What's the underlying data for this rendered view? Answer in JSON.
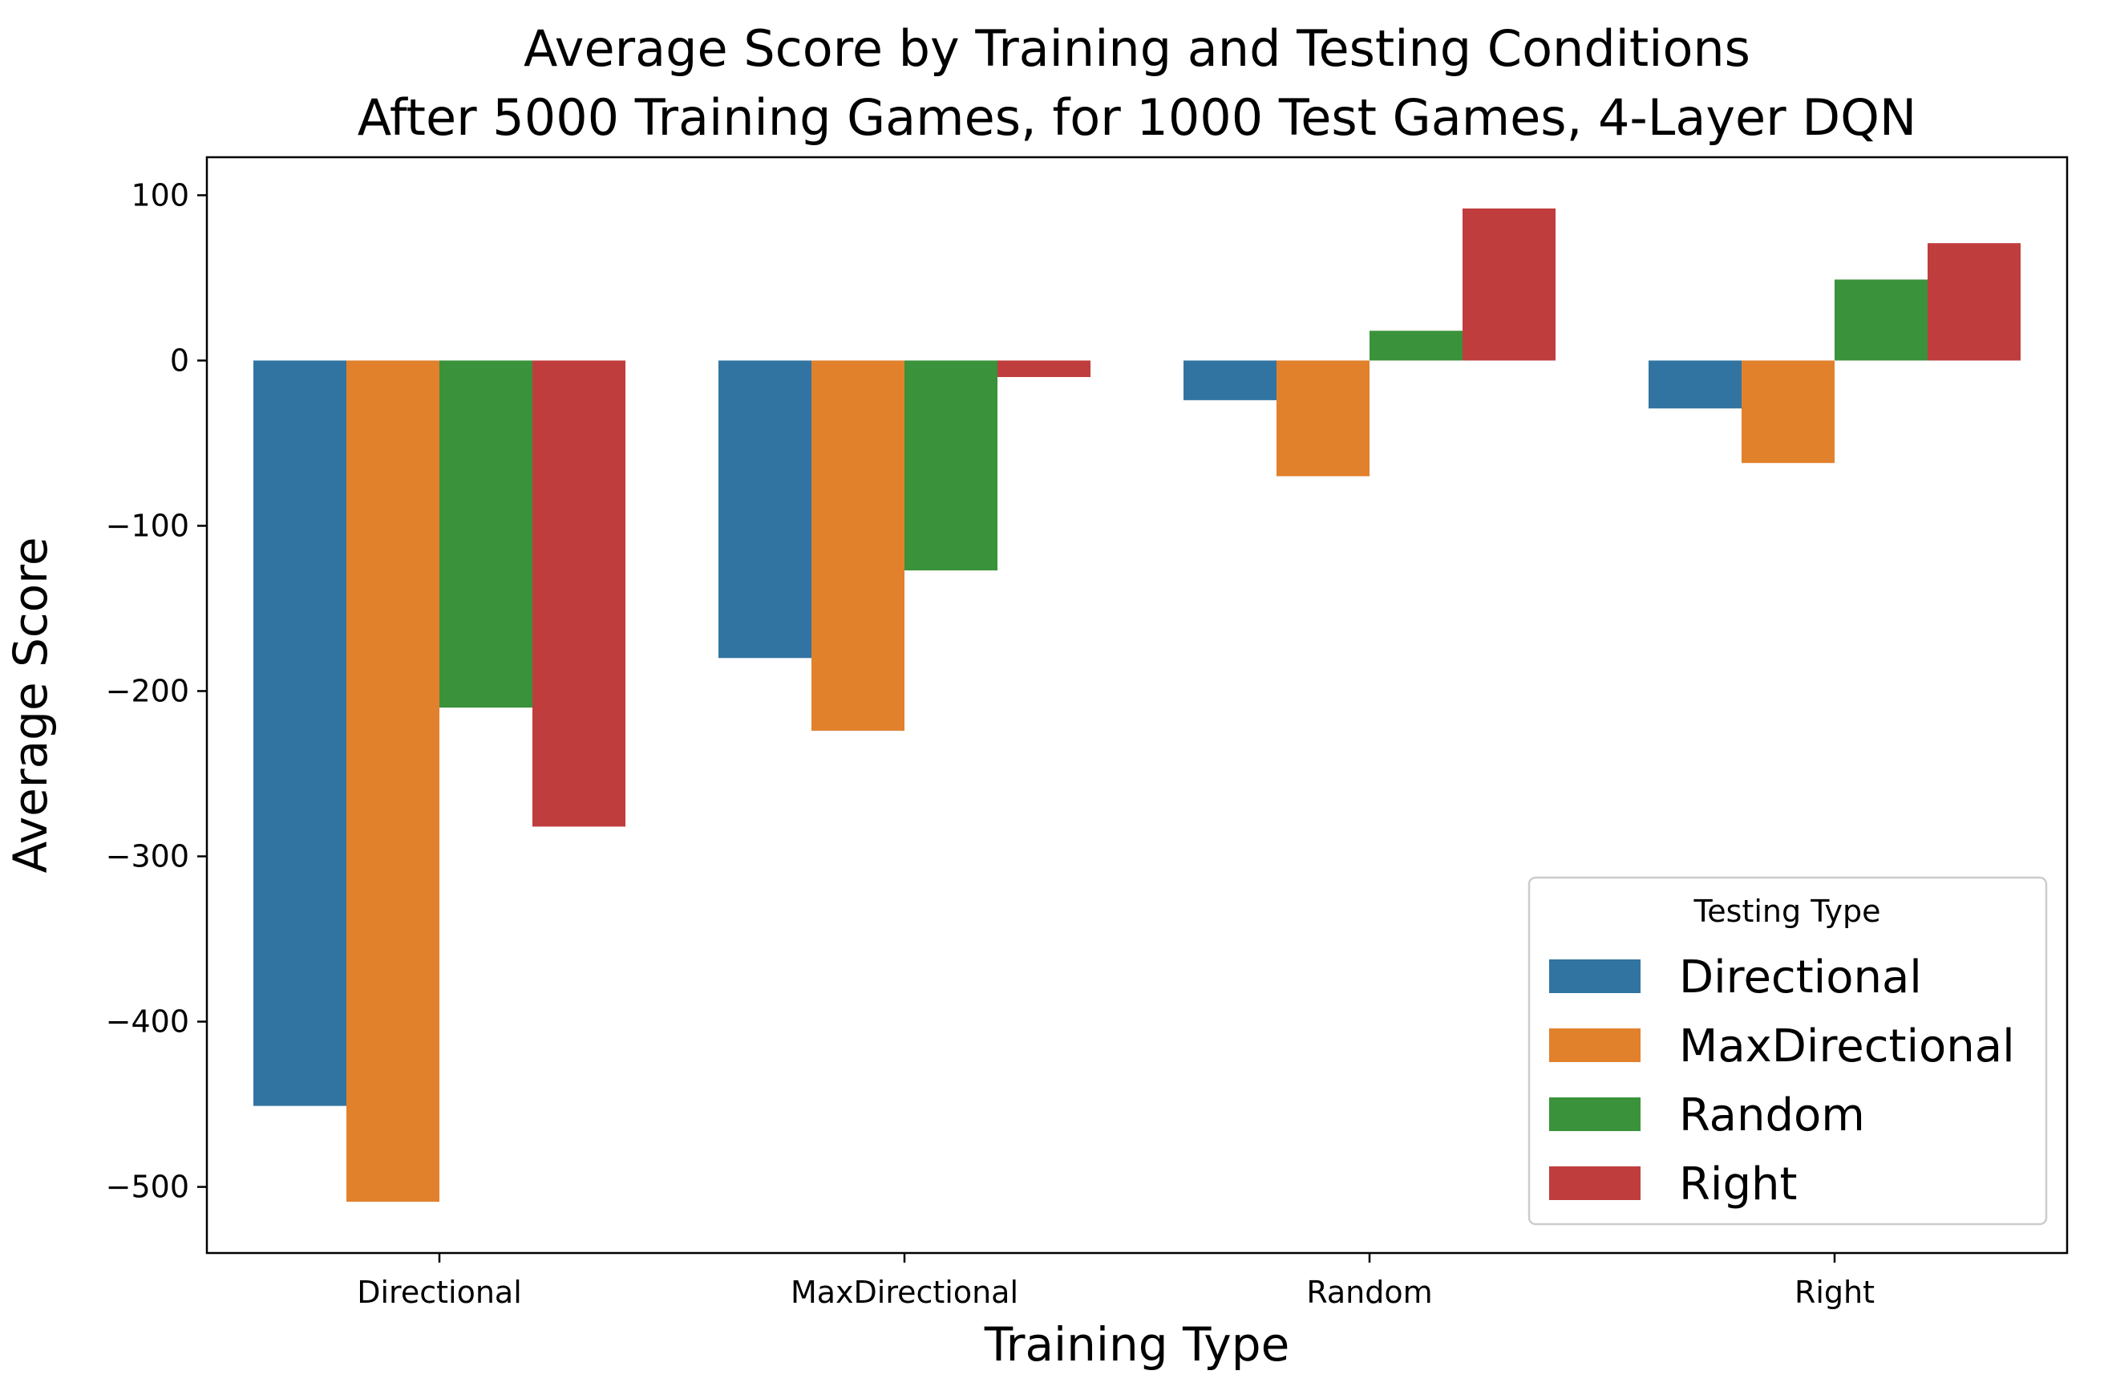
{
  "chart_data": {
    "type": "bar",
    "title_lines": [
      "Average Score by Training and Testing Conditions",
      "After 5000 Training Games, for 1000 Test Games, 4-Layer DQN"
    ],
    "xlabel": "Training Type",
    "ylabel": "Average Score",
    "categories": [
      "Directional",
      "MaxDirectional",
      "Random",
      "Right"
    ],
    "ylim": [
      -540,
      123
    ],
    "yticks": [
      100,
      0,
      -100,
      -200,
      -300,
      -400,
      -500
    ],
    "ytick_labels": [
      "100",
      "0",
      "−100",
      "−200",
      "−300",
      "−400",
      "−500"
    ],
    "grid": false,
    "legend": {
      "title": "Testing Type",
      "position": "lower-right"
    },
    "series": [
      {
        "name": "Directional",
        "color": "#3274a1",
        "values": [
          -451,
          -180,
          -24,
          -29
        ]
      },
      {
        "name": "MaxDirectional",
        "color": "#e1812c",
        "values": [
          -509,
          -224,
          -70,
          -62
        ]
      },
      {
        "name": "Random",
        "color": "#3a923a",
        "values": [
          -210,
          -127,
          18,
          49
        ]
      },
      {
        "name": "Right",
        "color": "#c03d3e",
        "values": [
          -282,
          -10,
          92,
          71
        ]
      }
    ]
  }
}
